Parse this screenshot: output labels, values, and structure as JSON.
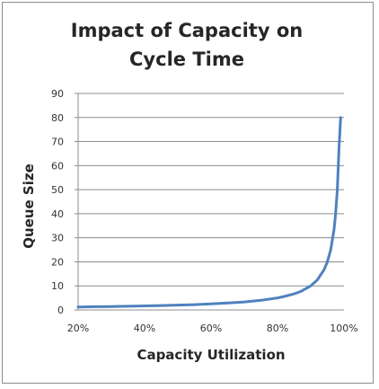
{
  "chart_data": {
    "type": "line",
    "title_lines": [
      "Impact of Capacity on",
      "Cycle Time"
    ],
    "xlabel": "Capacity Utilization",
    "ylabel": "Queue Size",
    "xlim": [
      0.2,
      1.0
    ],
    "ylim": [
      0,
      90
    ],
    "x_ticks": [
      "20%",
      "40%",
      "60%",
      "80%",
      "100%"
    ],
    "y_ticks": [
      "0",
      "10",
      "20",
      "30",
      "40",
      "50",
      "60",
      "70",
      "80",
      "90"
    ],
    "grid": "horizontal",
    "legend": "none",
    "series": [
      {
        "x": [
          0.2,
          0.25,
          0.3,
          0.35,
          0.4,
          0.45,
          0.5,
          0.55,
          0.6,
          0.65,
          0.7,
          0.75,
          0.8,
          0.82,
          0.85,
          0.87,
          0.9,
          0.92,
          0.94,
          0.95,
          0.96,
          0.97,
          0.975,
          0.98,
          0.985,
          0.99
        ],
        "y": [
          1.25,
          1.33,
          1.43,
          1.54,
          1.67,
          1.82,
          2.0,
          2.22,
          2.5,
          2.86,
          3.33,
          4.0,
          5.0,
          5.6,
          6.7,
          7.7,
          10.0,
          12.5,
          16.7,
          20.0,
          25.0,
          33.3,
          40.0,
          50.0,
          66.7,
          80.0
        ],
        "color": "#4f81bd"
      }
    ]
  }
}
